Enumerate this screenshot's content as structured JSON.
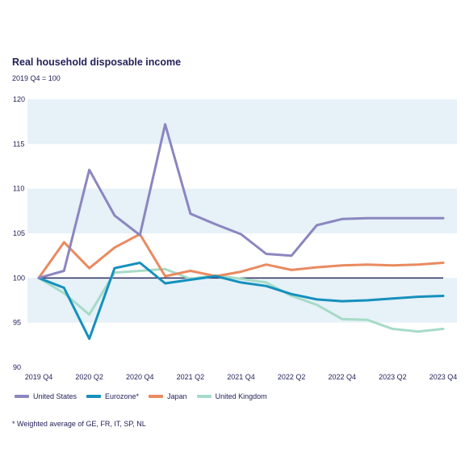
{
  "chart_data": {
    "type": "line",
    "title": "Real household disposable income",
    "subtitle": "2019 Q4 = 100",
    "x": [
      "2019 Q4",
      "2020 Q1",
      "2020 Q2",
      "2020 Q3",
      "2020 Q4",
      "2021 Q1",
      "2021 Q2",
      "2021 Q3",
      "2021 Q4",
      "2022 Q1",
      "2022 Q2",
      "2022 Q3",
      "2022 Q4",
      "2023 Q1",
      "2023 Q2",
      "2023 Q3",
      "2023 Q4"
    ],
    "x_tick_labels": [
      "2019 Q4",
      "2020 Q2",
      "2020 Q4",
      "2021 Q2",
      "2021 Q4",
      "2022 Q2",
      "2022 Q4",
      "2023 Q2",
      "2023 Q4"
    ],
    "y_ticks": [
      90,
      95,
      100,
      105,
      110,
      115,
      120
    ],
    "ylim": [
      90,
      120
    ],
    "baseline": 100,
    "series": [
      {
        "name": "United States",
        "color": "#8b86c0",
        "values": [
          100,
          100.8,
          112.1,
          107.0,
          104.8,
          117.2,
          107.2,
          106.0,
          104.9,
          102.7,
          102.5,
          105.9,
          106.6,
          106.7,
          106.7,
          106.7,
          106.7
        ]
      },
      {
        "name": "Eurozone*",
        "color": "#1590bd",
        "values": [
          100,
          98.9,
          93.2,
          101.1,
          101.7,
          99.4,
          99.8,
          100.2,
          99.5,
          99.1,
          98.2,
          97.6,
          97.4,
          97.5,
          97.7,
          97.9,
          98.0
        ]
      },
      {
        "name": "Japan",
        "color": "#e98a60",
        "values": [
          100,
          104.0,
          101.1,
          103.4,
          104.9,
          100.2,
          100.8,
          100.2,
          100.7,
          101.5,
          100.9,
          101.2,
          101.4,
          101.5,
          101.4,
          101.5,
          101.7
        ]
      },
      {
        "name": "United Kingdom",
        "color": "#a6dbc7",
        "values": [
          100,
          98.3,
          95.9,
          100.6,
          100.8,
          101.0,
          99.9,
          100.3,
          99.9,
          99.5,
          98.0,
          97.0,
          95.4,
          95.3,
          94.3,
          94.0,
          94.3
        ]
      }
    ],
    "footnote": "* Weighted average of GE, FR, IT, SP, NL"
  },
  "colors": {
    "band": "#e6f1f8",
    "baseline": "#2b2a5c",
    "text": "#23225a"
  }
}
